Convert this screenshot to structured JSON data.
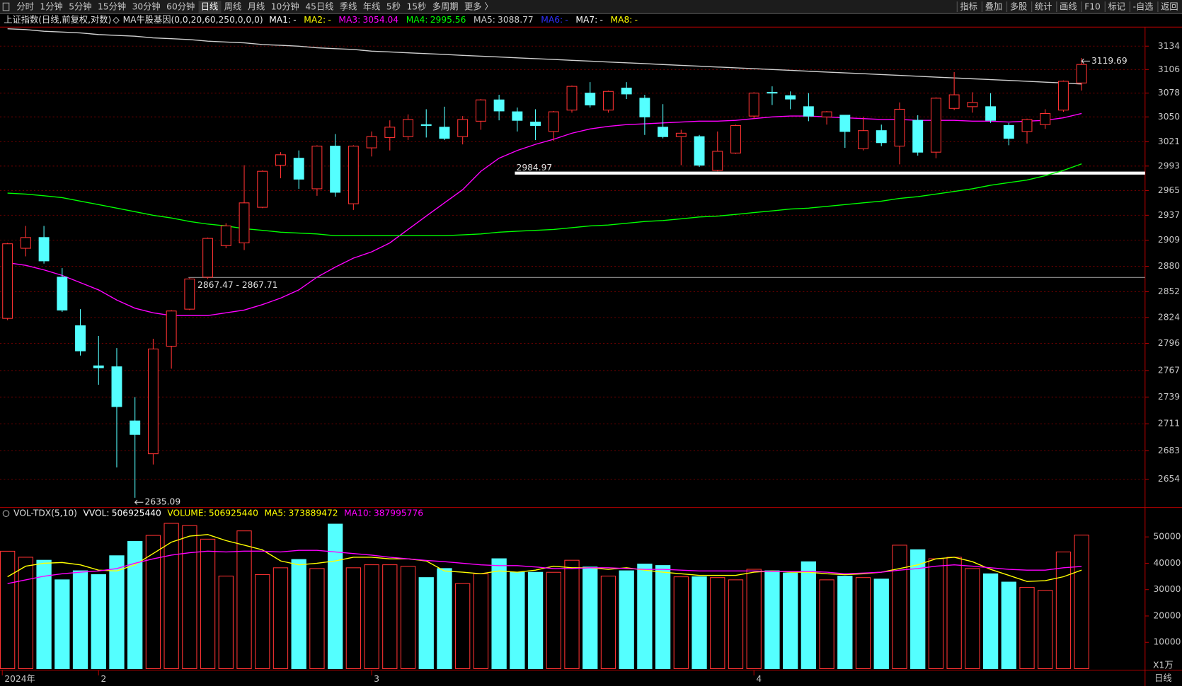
{
  "toolbar": {
    "left": [
      "分时",
      "1分钟",
      "5分钟",
      "15分钟",
      "30分钟",
      "60分钟",
      "日线",
      "周线",
      "月线",
      "10分钟",
      "45日线",
      "季线",
      "年线",
      "5秒",
      "15秒",
      "多周期",
      "更多 〉"
    ],
    "active": 6,
    "right": [
      "指标",
      "叠加",
      "多股",
      "统计",
      "画线",
      "F10",
      "标记",
      "-自选",
      "返回"
    ]
  },
  "chart_data": [
    {
      "type": "candlestick",
      "title": "上证指数(日线,前复权,对数)",
      "indicator": "MA牛股基因(0,0,20,60,250,0,0,0)",
      "period": "日线",
      "categories": [
        "2024年",
        null,
        null,
        null,
        null,
        "2",
        null,
        null,
        null,
        null,
        null,
        null,
        null,
        null,
        null,
        null,
        null,
        null,
        null,
        null,
        "3",
        null,
        null,
        null,
        null,
        null,
        null,
        null,
        null,
        null,
        null,
        null,
        null,
        null,
        null,
        null,
        null,
        null,
        null,
        null,
        null,
        "4",
        null,
        null,
        null,
        null,
        null,
        null,
        null,
        null,
        null,
        null,
        null,
        null,
        null,
        null,
        null,
        null,
        null,
        null
      ],
      "open": [
        2823,
        2900,
        2912,
        2868,
        2815,
        2772,
        2771,
        2714,
        2680,
        2793,
        2833,
        2868,
        2903,
        2906,
        2946,
        2994,
        3002,
        2967,
        3016,
        2950,
        3014,
        3026,
        3027,
        3041,
        3038,
        3027,
        3045,
        3070,
        3056,
        3044,
        3033,
        3058,
        3078,
        3058,
        3084,
        3072,
        3038,
        3027,
        3027,
        2988,
        3008,
        3051,
        3079,
        3075,
        3062,
        3050,
        3052,
        3013,
        3034,
        3016,
        3046,
        3009,
        3060,
        3062,
        3062,
        3040,
        3033,
        3041,
        3058,
        3090
      ],
      "high": [
        2906,
        2925,
        2925,
        2878,
        2833,
        2804,
        2791,
        2739,
        2801,
        2832,
        2867,
        2912,
        2928,
        2994,
        2988,
        3009,
        3011,
        3017,
        3030,
        3017,
        3033,
        3046,
        3053,
        3059,
        3062,
        3051,
        3071,
        3076,
        3061,
        3059,
        3057,
        3087,
        3091,
        3081,
        3091,
        3076,
        3065,
        3035,
        3029,
        3033,
        3041,
        3079,
        3086,
        3080,
        3078,
        3057,
        3052,
        3050,
        3041,
        3067,
        3052,
        3073,
        3103,
        3079,
        3078,
        3043,
        3048,
        3059,
        3093,
        3119.69
      ],
      "low": [
        2821,
        2891,
        2883,
        2830,
        2783,
        2752,
        2666,
        2635.09,
        2669,
        2769,
        2832,
        2866,
        2900,
        2898,
        2945,
        2979,
        2967,
        2959,
        2958,
        2943,
        3004,
        3011,
        3023,
        3026,
        3023,
        3018,
        3035,
        3046,
        3033,
        3023,
        3022,
        3055,
        3061,
        3055,
        3071,
        3029,
        3025,
        2994,
        2992,
        2987,
        3007,
        3048,
        3064,
        3059,
        3045,
        3041,
        3014,
        3011,
        3016,
        2995,
        3005,
        3002,
        3058,
        3055,
        3043,
        3017,
        3019,
        3036,
        3056,
        3081
      ],
      "close": [
        2905,
        2912,
        2886,
        2832,
        2788,
        2770,
        2729,
        2700,
        2790,
        2831,
        2866,
        2911,
        2925,
        2951,
        2987,
        3006,
        2978,
        3016,
        2963,
        3016,
        3027,
        3038,
        3047,
        3040,
        3025,
        3047,
        3070,
        3057,
        3046,
        3040,
        3056,
        3086,
        3064,
        3080,
        3077,
        3050,
        3027,
        3031,
        2994,
        3010,
        3040,
        3078,
        3078,
        3071,
        3051,
        3056,
        3033,
        3034,
        3020,
        3059,
        3009,
        3072,
        3076,
        3067,
        3046,
        3025,
        3047,
        3054,
        3092,
        3112
      ],
      "up_color": "#ff3232",
      "down_color": "#54ffff",
      "ma": [
        {
          "name": "MA1:",
          "color": "#ffffff",
          "label": "-"
        },
        {
          "name": "MA2:",
          "color": "#ffff00",
          "label": "-"
        },
        {
          "name": "MA3:",
          "color": "#ff00ff",
          "values": [
            2884,
            2881,
            2876,
            2870,
            2862,
            2854,
            2843,
            2834,
            2829,
            2826,
            2826,
            2826,
            2829,
            2832,
            2838,
            2845,
            2854,
            2868,
            2879,
            2889,
            2896,
            2906,
            2921,
            2936,
            2951,
            2966,
            2987,
            3002,
            3011,
            3018,
            3024,
            3031,
            3036,
            3039,
            3041,
            3042,
            3043,
            3044,
            3045,
            3045,
            3046,
            3048,
            3050,
            3051,
            3051,
            3050,
            3049,
            3048,
            3047,
            3047,
            3046,
            3046,
            3046,
            3045,
            3045,
            3044,
            3045,
            3046,
            3049,
            3054.04
          ]
        },
        {
          "name": "MA4:",
          "color": "#00ff00",
          "values": [
            2962,
            2961,
            2959,
            2957,
            2953,
            2949,
            2945,
            2941,
            2937,
            2934,
            2930,
            2927,
            2925,
            2922,
            2920,
            2918,
            2917,
            2916,
            2914,
            2914,
            2914,
            2914,
            2914,
            2914,
            2914,
            2915,
            2916,
            2918,
            2919,
            2920,
            2921,
            2923,
            2925,
            2926,
            2928,
            2930,
            2931,
            2933,
            2935,
            2936,
            2938,
            2940,
            2942,
            2944,
            2945,
            2947,
            2949,
            2951,
            2953,
            2956,
            2958,
            2961,
            2964,
            2967,
            2971,
            2974,
            2977,
            2982,
            2988,
            2995.56
          ]
        },
        {
          "name": "MA5:",
          "color": "#d0d0d0",
          "values": [
            3155,
            3154,
            3152,
            3151,
            3150,
            3148,
            3147,
            3146,
            3144,
            3143,
            3142,
            3140,
            3139,
            3138,
            3136,
            3135,
            3134,
            3132,
            3131,
            3130,
            3128,
            3127,
            3126,
            3125,
            3124,
            3123,
            3122,
            3121,
            3120,
            3119,
            3118,
            3117,
            3116,
            3115,
            3114,
            3113,
            3112,
            3111,
            3110,
            3109,
            3108,
            3107,
            3106,
            3105,
            3104,
            3103,
            3102,
            3101,
            3100,
            3099,
            3098,
            3097,
            3096,
            3095,
            3094,
            3093,
            3092,
            3091,
            3090,
            3088.77
          ]
        },
        {
          "name": "MA6:",
          "color": "#3030ff",
          "label": "-"
        },
        {
          "name": "MA7:",
          "color": "#ffffff",
          "label": "-"
        },
        {
          "name": "MA8:",
          "color": "#ffff00",
          "label": "-"
        }
      ],
      "levels": [
        {
          "value": 2984.97,
          "color": "#ffffff"
        },
        {
          "value": 2867.71,
          "label": "2867.47 - 2867.71",
          "color": "#909090"
        }
      ],
      "log_scale": true,
      "ylim": [
        2626,
        3157
      ],
      "yticks": [
        2654,
        2683,
        2711,
        2739,
        2767,
        2796,
        2824,
        2852,
        2880,
        2909,
        2937,
        2965,
        2993,
        3021,
        3050,
        3078,
        3106,
        3134
      ],
      "grid": true
    },
    {
      "type": "bar",
      "indicator": "VOL-TDX(5,10)",
      "unit": "X1万",
      "header": [
        {
          "name": "VVOL:",
          "value": 506925440,
          "color": "#ffffff"
        },
        {
          "name": "VOLUME:",
          "value": 506925440,
          "color": "#ffff00"
        }
      ],
      "values": [
        44571,
        42286,
        41143,
        33714,
        37143,
        35714,
        42857,
        48286,
        50571,
        55143,
        54286,
        49143,
        35143,
        52286,
        35714,
        38286,
        41429,
        38000,
        54857,
        38286,
        39429,
        39429,
        38857,
        34571,
        38000,
        32286,
        36000,
        41714,
        36571,
        36571,
        36571,
        41143,
        38571,
        35143,
        37143,
        39714,
        39143,
        34857,
        34857,
        34571,
        33714,
        37714,
        37143,
        36286,
        40571,
        33714,
        35143,
        34571,
        34000,
        46857,
        45143,
        41714,
        42286,
        38000,
        36000,
        32857,
        30857,
        29714,
        44286,
        50692.544
      ],
      "lines": [
        {
          "name": "MA5:",
          "value": 373889472,
          "color": "#ffff00",
          "values": [
            34900,
            38900,
            40000,
            40300,
            39400,
            37400,
            37100,
            39400,
            43700,
            48000,
            50300,
            50900,
            48600,
            46900,
            45100,
            40900,
            39400,
            40000,
            40900,
            42300,
            42300,
            41700,
            41700,
            40900,
            37100,
            36600,
            36000,
            37100,
            36600,
            37400,
            38900,
            38300,
            38300,
            37700,
            38300,
            37400,
            36600,
            36000,
            35400,
            35400,
            35400,
            36600,
            37100,
            36600,
            36600,
            36000,
            35700,
            36000,
            36600,
            38000,
            39400,
            41700,
            42300,
            40600,
            37700,
            35400,
            33100,
            33400,
            34900,
            37388.9472
          ]
        },
        {
          "name": "MA10:",
          "value": 387995776,
          "color": "#ff00ff",
          "values": [
            32300,
            33700,
            35100,
            36000,
            36600,
            37100,
            38000,
            40000,
            41700,
            43100,
            44000,
            44600,
            44300,
            44600,
            44600,
            44300,
            44900,
            44900,
            44300,
            43700,
            43100,
            42300,
            41700,
            41100,
            40600,
            40000,
            39400,
            39100,
            39100,
            38600,
            38000,
            38000,
            38300,
            38300,
            38000,
            37700,
            37700,
            37400,
            37100,
            37100,
            37100,
            37100,
            36900,
            36900,
            36900,
            36600,
            36000,
            36300,
            36600,
            37400,
            38000,
            38900,
            39400,
            38900,
            38300,
            37700,
            37400,
            37400,
            38300,
            38799.5776
          ]
        }
      ],
      "ylim": [
        0,
        60860
      ],
      "yticks": [
        10000,
        20000,
        30000,
        40000,
        50000
      ]
    }
  ]
}
